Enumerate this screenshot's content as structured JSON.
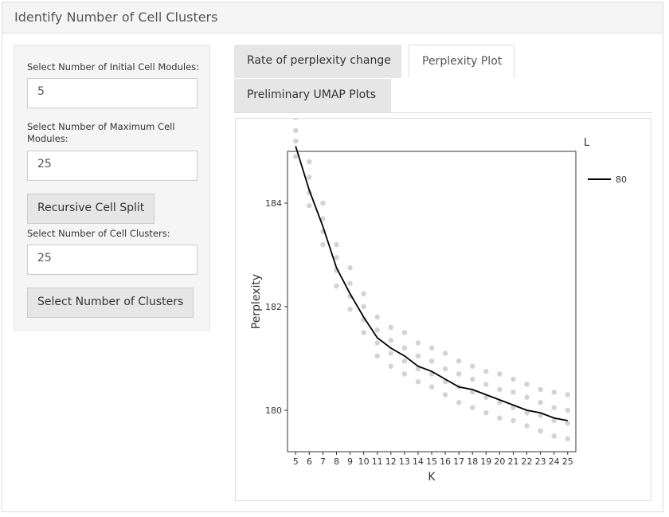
{
  "panel": {
    "title": "Identify Number of Cell Clusters"
  },
  "sidebar": {
    "initial_modules_label": "Select Number of Initial Cell Modules:",
    "initial_modules_value": "5",
    "max_modules_label": "Select Number of Maximum Cell Modules:",
    "max_modules_value": "25",
    "recursive_split_button": "Recursive Cell Split",
    "cell_clusters_label": "Select Number of Cell Clusters:",
    "cell_clusters_value": "25",
    "select_clusters_button": "Select Number of Clusters"
  },
  "tabs": [
    {
      "label": "Rate of perplexity change",
      "active": false
    },
    {
      "label": "Perplexity Plot",
      "active": true
    },
    {
      "label": "Preliminary UMAP Plots",
      "active": false
    }
  ],
  "chart_data": {
    "type": "line",
    "xlabel": "K",
    "ylabel": "Perplexity",
    "x": [
      5,
      6,
      7,
      8,
      9,
      10,
      11,
      12,
      13,
      14,
      15,
      16,
      17,
      18,
      19,
      20,
      21,
      22,
      23,
      24,
      25
    ],
    "xlim": [
      4.4,
      25.6
    ],
    "ylim": [
      179.2,
      185.0
    ],
    "yticks": [
      180,
      182,
      184
    ],
    "grid": false,
    "legend": {
      "title": "L",
      "placement": "right"
    },
    "series": [
      {
        "name": "80",
        "values": [
          185.1,
          184.25,
          183.55,
          182.75,
          182.25,
          181.8,
          181.4,
          181.2,
          181.05,
          180.85,
          180.75,
          180.6,
          180.45,
          180.4,
          180.3,
          180.2,
          180.1,
          180.0,
          179.95,
          179.85,
          179.8
        ]
      }
    ],
    "points": [
      [
        5,
        185.65
      ],
      [
        5,
        185.4
      ],
      [
        5,
        185.2
      ],
      [
        5,
        184.9
      ],
      [
        6,
        184.8
      ],
      [
        6,
        184.5
      ],
      [
        6,
        184.2
      ],
      [
        6,
        183.95
      ],
      [
        7,
        184.0
      ],
      [
        7,
        183.7
      ],
      [
        7,
        183.45
      ],
      [
        7,
        183.2
      ],
      [
        8,
        183.2
      ],
      [
        8,
        182.95
      ],
      [
        8,
        182.7
      ],
      [
        8,
        182.4
      ],
      [
        9,
        182.75
      ],
      [
        9,
        182.45
      ],
      [
        9,
        182.2
      ],
      [
        9,
        181.95
      ],
      [
        10,
        182.25
      ],
      [
        10,
        182.0
      ],
      [
        10,
        181.75
      ],
      [
        10,
        181.5
      ],
      [
        11,
        181.8
      ],
      [
        11,
        181.55
      ],
      [
        11,
        181.3
      ],
      [
        11,
        181.05
      ],
      [
        12,
        181.6
      ],
      [
        12,
        181.35
      ],
      [
        12,
        181.1
      ],
      [
        12,
        180.85
      ],
      [
        13,
        181.5
      ],
      [
        13,
        181.2
      ],
      [
        13,
        180.95
      ],
      [
        13,
        180.7
      ],
      [
        14,
        181.3
      ],
      [
        14,
        181.05
      ],
      [
        14,
        180.8
      ],
      [
        14,
        180.55
      ],
      [
        15,
        181.2
      ],
      [
        15,
        180.95
      ],
      [
        15,
        180.7
      ],
      [
        15,
        180.45
      ],
      [
        16,
        181.1
      ],
      [
        16,
        180.8
      ],
      [
        16,
        180.55
      ],
      [
        16,
        180.3
      ],
      [
        17,
        180.95
      ],
      [
        17,
        180.7
      ],
      [
        17,
        180.45
      ],
      [
        17,
        180.15
      ],
      [
        18,
        180.85
      ],
      [
        18,
        180.6
      ],
      [
        18,
        180.35
      ],
      [
        18,
        180.05
      ],
      [
        19,
        180.75
      ],
      [
        19,
        180.5
      ],
      [
        19,
        180.25
      ],
      [
        19,
        179.95
      ],
      [
        20,
        180.7
      ],
      [
        20,
        180.4
      ],
      [
        20,
        180.15
      ],
      [
        20,
        179.85
      ],
      [
        21,
        180.6
      ],
      [
        21,
        180.35
      ],
      [
        21,
        180.05
      ],
      [
        21,
        179.8
      ],
      [
        22,
        180.5
      ],
      [
        22,
        180.25
      ],
      [
        22,
        179.95
      ],
      [
        22,
        179.7
      ],
      [
        23,
        180.4
      ],
      [
        23,
        180.15
      ],
      [
        23,
        179.9
      ],
      [
        23,
        179.6
      ],
      [
        24,
        180.35
      ],
      [
        24,
        180.05
      ],
      [
        24,
        179.8
      ],
      [
        24,
        179.5
      ],
      [
        25,
        180.3
      ],
      [
        25,
        180.0
      ],
      [
        25,
        179.75
      ],
      [
        25,
        179.45
      ]
    ],
    "colors": {
      "line": "#000000",
      "points": "#d3d3d3",
      "axis": "#333333"
    }
  }
}
